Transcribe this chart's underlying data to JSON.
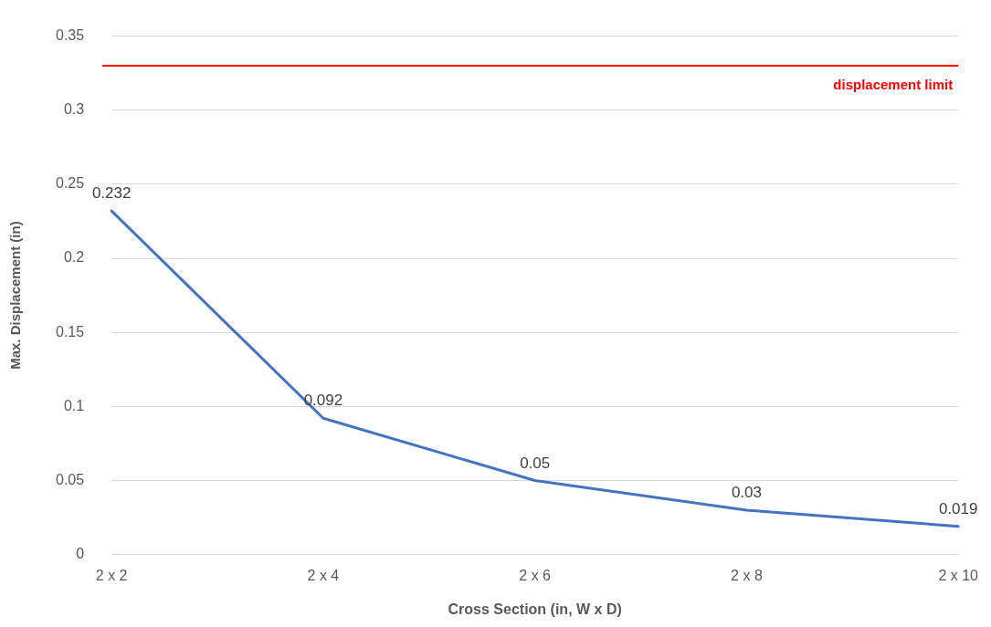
{
  "chart_data": {
    "type": "line",
    "xlabel": "Cross Section (in, W x D)",
    "ylabel": "Max. Displacement (in)",
    "categories": [
      "2 x 2",
      "2 x 4",
      "2 x 6",
      "2 x 8",
      "2 x 10"
    ],
    "series": [
      {
        "color": "#4472c4",
        "values": [
          0.232,
          0.092,
          0.05,
          0.03,
          0.019
        ]
      }
    ],
    "ylim": [
      0,
      0.35
    ],
    "yticks": [
      0,
      0.05,
      0.1,
      0.15,
      0.2,
      0.25,
      0.3,
      0.35
    ],
    "grid": "y",
    "legend": false,
    "marker": "none",
    "line_style": "solid",
    "data_labels": true,
    "ref_lines": [
      {
        "axis": "y",
        "value": 0.33,
        "label": "displacement limit",
        "color": "#ff0000"
      }
    ]
  }
}
